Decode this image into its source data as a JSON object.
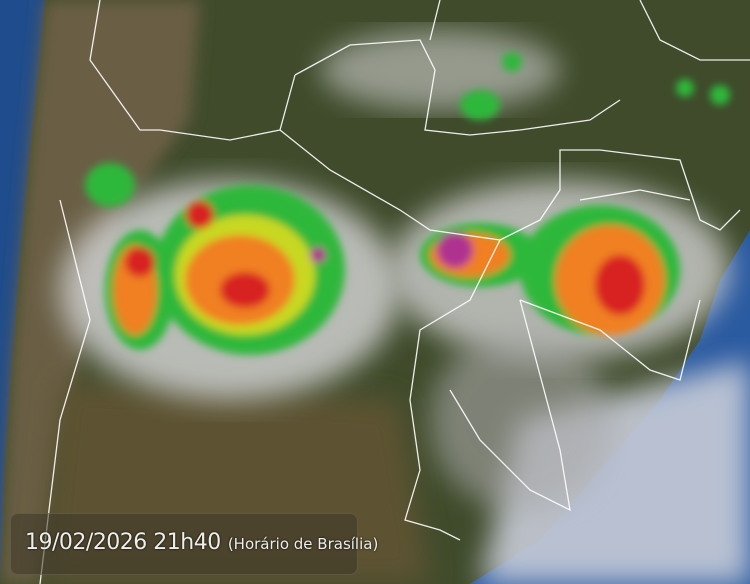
{
  "overlay": {
    "datetime": "19/02/2026 21h40",
    "timezone_note": "(Horário de Brasília)"
  },
  "colors": {
    "ocean": "#1f4f8f",
    "land": "#4a5530",
    "cloud": "#d8d8d8",
    "storm_scale": [
      "#1a3aa0",
      "#2fb83a",
      "#c8d820",
      "#f08020",
      "#d82020",
      "#b03090"
    ]
  }
}
